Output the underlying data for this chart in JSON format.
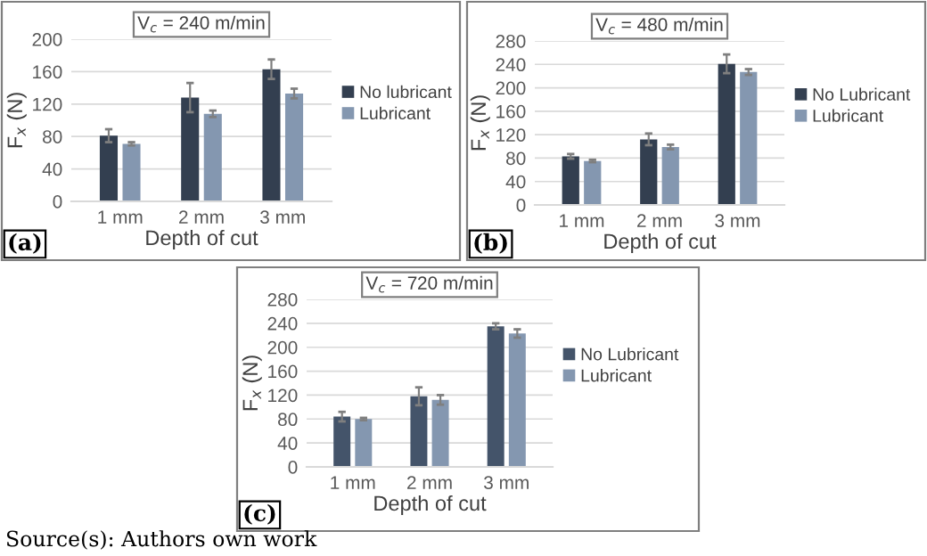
{
  "chart_data": [
    {
      "type": "bar",
      "title": "V$_{c}$ = 240 m/min",
      "xlabel": "Depth of cut",
      "ylabel": "F$_{x}$ (N)",
      "categories": [
        "1 mm",
        "2 mm",
        "3 mm"
      ],
      "series": [
        {
          "name": "No lubricant",
          "color": "#333f50",
          "values": [
            81,
            128,
            163
          ],
          "errors": [
            8,
            18,
            12
          ]
        },
        {
          "name": "Lubricant",
          "color": "#8497b0",
          "values": [
            71,
            108,
            133
          ],
          "errors": [
            2,
            4,
            6
          ]
        }
      ],
      "ylim": [
        0,
        200
      ],
      "yticks": [
        0,
        40,
        80,
        120,
        160,
        200
      ],
      "grid": "y",
      "legend": "right",
      "annotations": [
        "(a)"
      ]
    },
    {
      "type": "bar",
      "title": "V$_{c}$ = 480 m/min",
      "xlabel": "Depth of cut",
      "ylabel": "F$_{x}$ (N)",
      "categories": [
        "1 mm",
        "2 mm",
        "3 mm"
      ],
      "series": [
        {
          "name": "No Lubricant",
          "color": "#333f50",
          "values": [
            83,
            112,
            241
          ],
          "errors": [
            4,
            10,
            16
          ]
        },
        {
          "name": "Lubricant",
          "color": "#8497b0",
          "values": [
            75,
            99,
            227
          ],
          "errors": [
            2,
            4,
            5
          ]
        }
      ],
      "ylim": [
        0,
        280
      ],
      "yticks": [
        0,
        40,
        80,
        120,
        160,
        200,
        240,
        280
      ],
      "grid": "y",
      "legend": "right",
      "annotations": [
        "(b)"
      ]
    },
    {
      "type": "bar",
      "title": "V$_{c}$ = 720 m/min",
      "xlabel": "Depth of cut",
      "ylabel": "F$_{x}$ (N)",
      "categories": [
        "1 mm",
        "2 mm",
        "3 mm"
      ],
      "series": [
        {
          "name": "No Lubricant",
          "color": "#44546a",
          "values": [
            84,
            118,
            235
          ],
          "errors": [
            8,
            15,
            5
          ]
        },
        {
          "name": "Lubricant",
          "color": "#8497b0",
          "values": [
            80,
            112,
            223
          ],
          "errors": [
            2,
            8,
            7
          ]
        }
      ],
      "ylim": [
        0,
        280
      ],
      "yticks": [
        0,
        40,
        80,
        120,
        160,
        200,
        240,
        280
      ],
      "grid": "y",
      "legend": "right",
      "annotations": [
        "(c)",
        "Source(s): Authors own work"
      ]
    }
  ]
}
